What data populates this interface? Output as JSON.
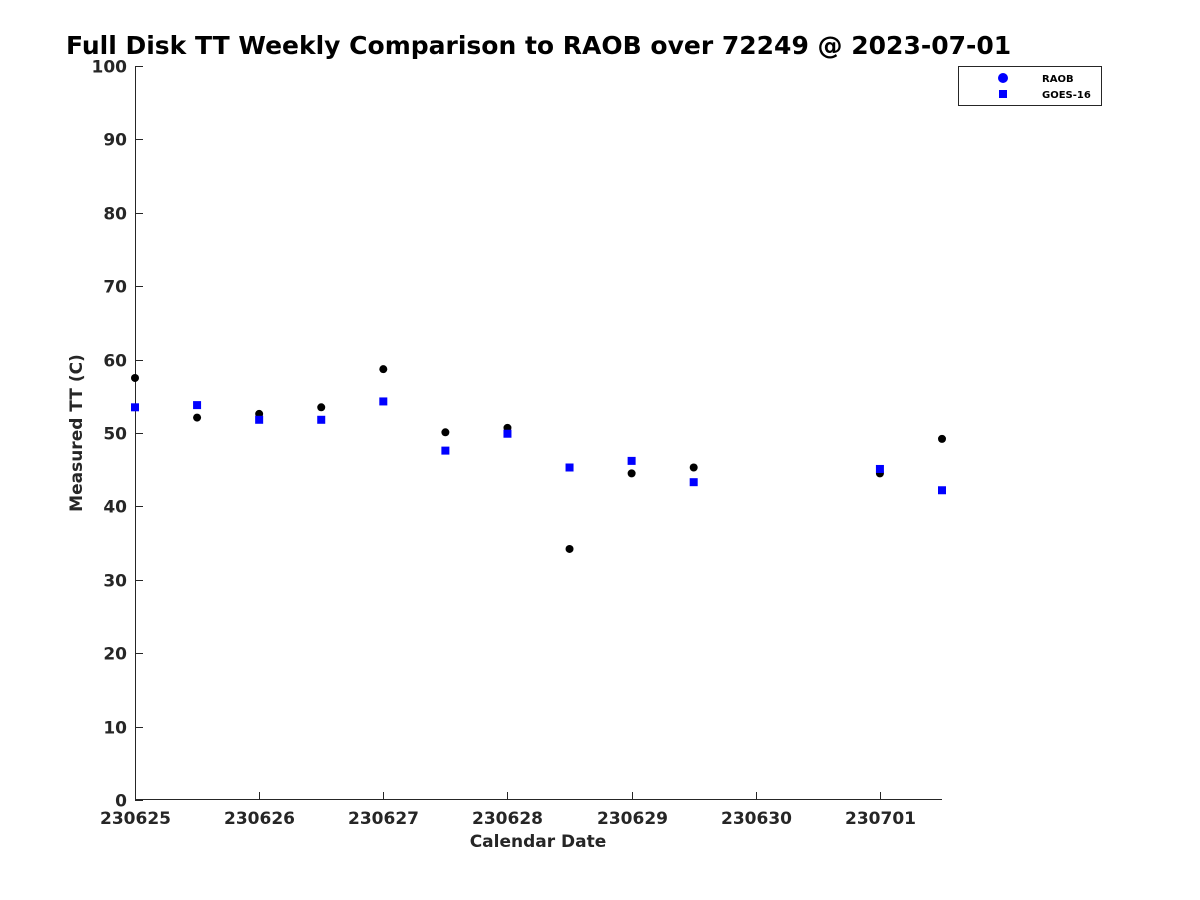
{
  "chart_data": {
    "type": "scatter",
    "title": "Full Disk TT Weekly Comparison to RAOB over 72249 @ 2023-07-01",
    "xlabel": "Calendar Date",
    "ylabel": "Measured TT (C)",
    "xlim": [
      "2023-06-25T00:00",
      "2023-07-01T12:00"
    ],
    "ylim": [
      0,
      100
    ],
    "x_ticks": [
      {
        "date": "2023-06-25T00:00",
        "label": "230625"
      },
      {
        "date": "2023-06-26T00:00",
        "label": "230626"
      },
      {
        "date": "2023-06-27T00:00",
        "label": "230627"
      },
      {
        "date": "2023-06-28T00:00",
        "label": "230628"
      },
      {
        "date": "2023-06-29T00:00",
        "label": "230629"
      },
      {
        "date": "2023-06-30T00:00",
        "label": "230630"
      },
      {
        "date": "2023-07-01T00:00",
        "label": "230701"
      }
    ],
    "y_ticks": [
      0,
      10,
      20,
      30,
      40,
      50,
      60,
      70,
      80,
      90,
      100
    ],
    "legend_position": "top-right",
    "grid": false,
    "series": [
      {
        "name": "RAOB",
        "marker": "circle",
        "color": "#000000",
        "legend_color": "#0000ff",
        "points": [
          {
            "x": "2023-06-25T00:00",
            "y": 57.5
          },
          {
            "x": "2023-06-25T12:00",
            "y": 52.1
          },
          {
            "x": "2023-06-26T00:00",
            "y": 52.6
          },
          {
            "x": "2023-06-26T12:00",
            "y": 53.5
          },
          {
            "x": "2023-06-27T00:00",
            "y": 58.7
          },
          {
            "x": "2023-06-27T12:00",
            "y": 50.1
          },
          {
            "x": "2023-06-28T00:00",
            "y": 50.7
          },
          {
            "x": "2023-06-28T12:00",
            "y": 34.2
          },
          {
            "x": "2023-06-29T00:00",
            "y": 44.5
          },
          {
            "x": "2023-06-29T12:00",
            "y": 45.3
          },
          {
            "x": "2023-07-01T00:00",
            "y": 44.5
          },
          {
            "x": "2023-07-01T12:00",
            "y": 49.2
          }
        ]
      },
      {
        "name": "GOES-16",
        "marker": "square",
        "color": "#0000ff",
        "legend_color": "#0000ff",
        "points": [
          {
            "x": "2023-06-25T00:00",
            "y": 53.5
          },
          {
            "x": "2023-06-25T12:00",
            "y": 53.8
          },
          {
            "x": "2023-06-26T00:00",
            "y": 51.8
          },
          {
            "x": "2023-06-26T12:00",
            "y": 51.8
          },
          {
            "x": "2023-06-27T00:00",
            "y": 54.3
          },
          {
            "x": "2023-06-27T12:00",
            "y": 47.6
          },
          {
            "x": "2023-06-28T00:00",
            "y": 49.9
          },
          {
            "x": "2023-06-28T12:00",
            "y": 45.3
          },
          {
            "x": "2023-06-29T00:00",
            "y": 46.2
          },
          {
            "x": "2023-06-29T12:00",
            "y": 43.3
          },
          {
            "x": "2023-07-01T00:00",
            "y": 45.1
          },
          {
            "x": "2023-07-01T12:00",
            "y": 42.2
          }
        ]
      }
    ]
  }
}
